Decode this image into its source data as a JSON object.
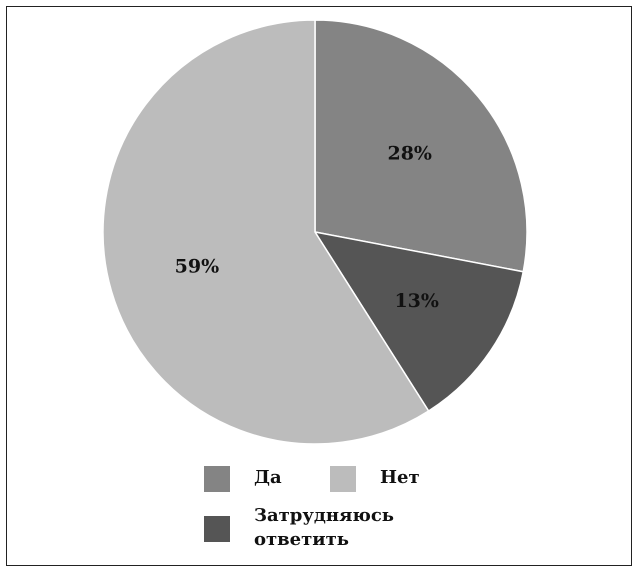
{
  "chart_data": {
    "type": "pie",
    "title": "",
    "slices": [
      {
        "label": "Да",
        "value": 28,
        "value_label": "28%",
        "color": "#848484"
      },
      {
        "label": "Затрудняюсь ответить",
        "value": 13,
        "value_label": "13%",
        "color": "#555555"
      },
      {
        "label": "Нет",
        "value": 59,
        "value_label": "59%",
        "color": "#bcbcbc"
      }
    ],
    "start_angle": "12 o'clock",
    "direction": "clockwise",
    "legend_position": "bottom"
  },
  "legend": {
    "items": [
      {
        "label": "Да",
        "color": "#848484"
      },
      {
        "label": "Нет",
        "color": "#bcbcbc"
      },
      {
        "label": "Затрудняюсь\nответить",
        "color": "#555555"
      }
    ]
  }
}
